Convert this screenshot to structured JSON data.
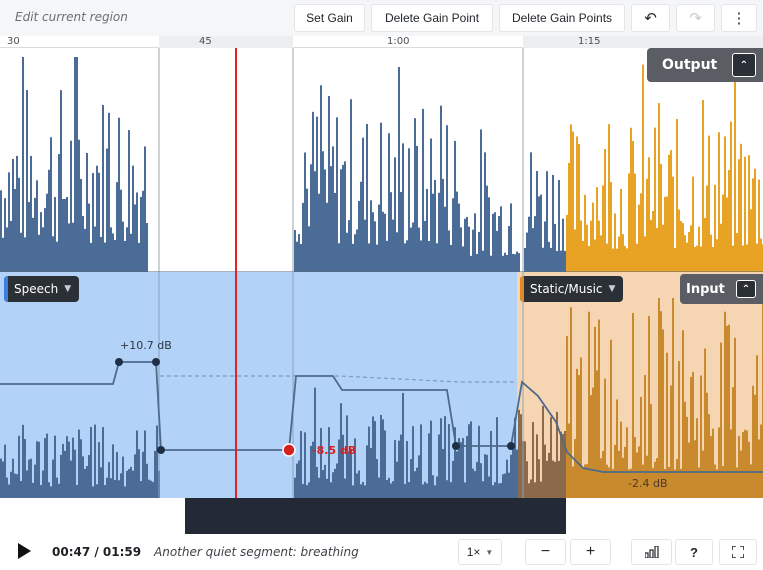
{
  "toolbar": {
    "title": "Edit current region",
    "set_gain": "Set Gain",
    "delete_gain_point": "Delete Gain Point",
    "delete_gain_points": "Delete Gain Points",
    "undo_icon": "↶",
    "redo_icon": "↷",
    "more_icon": "⋮"
  },
  "ruler": {
    "ticks": [
      "30",
      "45",
      "1:00",
      "1:15"
    ]
  },
  "output_label": "Output",
  "input_label": "Input",
  "segments": {
    "speech": "Speech",
    "music": "Static/Music"
  },
  "gain_labels": {
    "boost": "+10.7 dB",
    "cut": "-8.5 dB",
    "music": "-2.4 dB"
  },
  "playback": {
    "time": "00:47 / 01:59",
    "caption": "Another quiet segment: breathing",
    "speed": "1×",
    "minus": "−",
    "plus": "+",
    "help": "?"
  },
  "colors": {
    "speech_wave": "#4a6c97",
    "music_wave": "#e9a324",
    "playhead": "#e02424"
  }
}
